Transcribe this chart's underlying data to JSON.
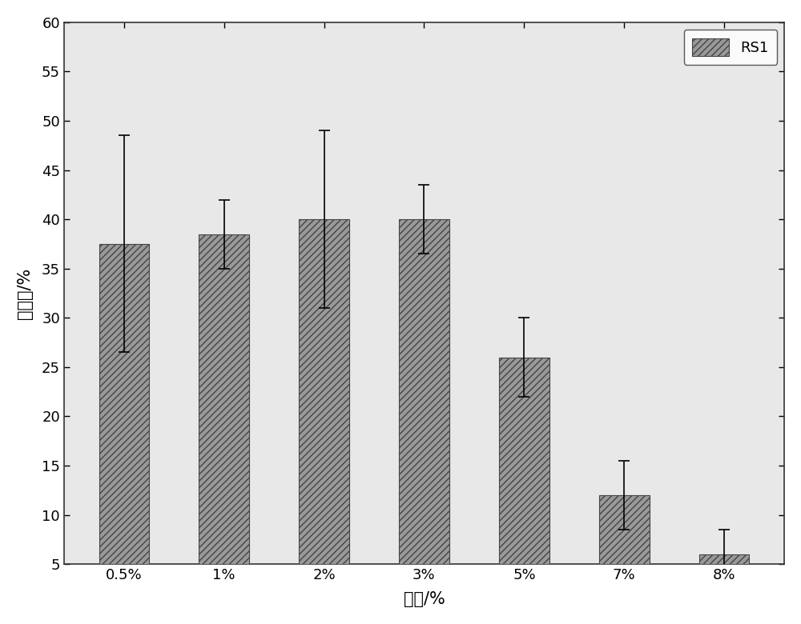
{
  "categories": [
    "0.5%",
    "1%",
    "2%",
    "3%",
    "5%",
    "7%",
    "8%"
  ],
  "values": [
    37.5,
    38.5,
    40.0,
    40.0,
    26.0,
    12.0,
    6.0
  ],
  "errors": [
    11.0,
    3.5,
    9.0,
    3.5,
    4.0,
    3.5,
    2.5
  ],
  "bar_color": "#999999",
  "hatch": "////",
  "xlabel": "盐度/%",
  "ylabel": "降解率/%",
  "ylim": [
    5,
    60
  ],
  "yticks": [
    5,
    10,
    15,
    20,
    25,
    30,
    35,
    40,
    45,
    50,
    55,
    60
  ],
  "legend_label": "RS1",
  "axis_fontsize": 15,
  "tick_fontsize": 13,
  "legend_fontsize": 13,
  "bar_width": 0.5,
  "background_color": "#FFFFFF",
  "plot_bg_color": "#E8E8E8",
  "edge_color": "#444444"
}
